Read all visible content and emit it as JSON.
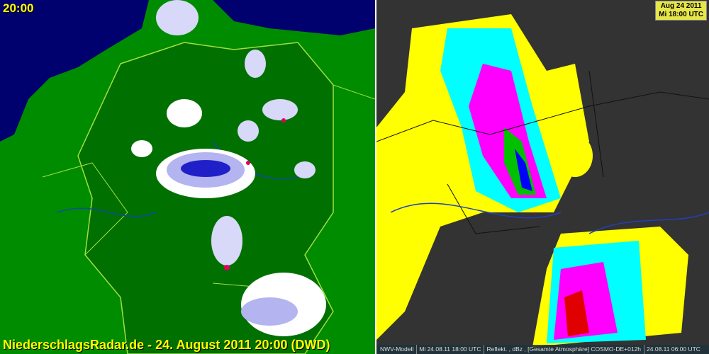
{
  "left_panel": {
    "time_label": "20:00",
    "caption": "NiederschlagsRadar.de - 24. August 2011 20:00 (DWD)",
    "colors": {
      "sea": "#00006e",
      "land": "#008c00",
      "germany": "#007000",
      "borders": "#a0e040",
      "precip_light": "#ffffff",
      "precip_mid": "#b4b4f0",
      "precip_heavy": "#2020c8",
      "precip_max": "#e00060"
    }
  },
  "right_panel": {
    "badge": {
      "date": "Aug 24 2011",
      "time": "Mi 18:00 UTC"
    },
    "footer": {
      "model": "NWV-Modell",
      "valid": "Mi 24.08.11 18:00 UTC",
      "field": "Reflekt. , dBz , [Gesamte Atmosphäre] COSMO-DE+012h",
      "run": "24.08.11 06:00 UTC"
    },
    "colors": {
      "background": "#333333",
      "yellow": "#ffff00",
      "cyan": "#00ffff",
      "magenta": "#ff00ff",
      "green": "#00c000",
      "blue": "#0000ff",
      "red": "#e00000"
    }
  }
}
